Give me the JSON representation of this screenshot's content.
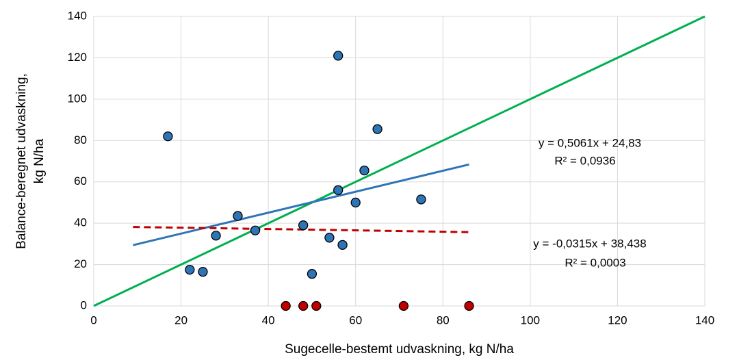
{
  "chart_data": {
    "type": "scatter",
    "xlabel": "Sugecelle-bestemt udvaskning, kg N/ha",
    "ylabel": [
      "Balance-beregnet udvaskning,",
      "kg N/ha"
    ],
    "xlim": [
      0,
      140
    ],
    "ylim": [
      0,
      140
    ],
    "xticks": [
      0,
      20,
      40,
      60,
      80,
      100,
      120,
      140
    ],
    "yticks": [
      0,
      20,
      40,
      60,
      80,
      100,
      120,
      140
    ],
    "grid": true,
    "series": [
      {
        "mode": "markers",
        "color": "#2e75b6",
        "x": [
          17,
          22,
          25,
          28,
          33,
          37,
          48,
          50,
          54,
          56,
          56,
          57,
          60,
          62,
          65,
          75
        ],
        "values": [
          82,
          17.5,
          16.5,
          34,
          43.5,
          36.5,
          39,
          15.5,
          33,
          121,
          56,
          29.5,
          50,
          65.5,
          85.5,
          51.5
        ]
      },
      {
        "mode": "markers",
        "color": "#c00000",
        "x": [
          44,
          48,
          51,
          71,
          86
        ],
        "values": [
          0,
          0,
          0,
          0,
          0
        ]
      },
      {
        "mode": "line",
        "color": "#00b050",
        "x": [
          0,
          140
        ],
        "values": [
          0,
          140
        ]
      },
      {
        "mode": "line",
        "color": "#2e75b6",
        "x": [
          9,
          86
        ],
        "values": [
          29.4,
          68.4
        ]
      },
      {
        "mode": "line",
        "dashed": true,
        "color": "#c00000",
        "x": [
          9,
          86
        ],
        "values": [
          38.2,
          35.7
        ]
      }
    ],
    "annotations": [
      "y = 0,5061x + 24,83",
      "R² = 0,0936",
      "y = -0,0315x + 38,438",
      "R² = 0,0003"
    ]
  }
}
